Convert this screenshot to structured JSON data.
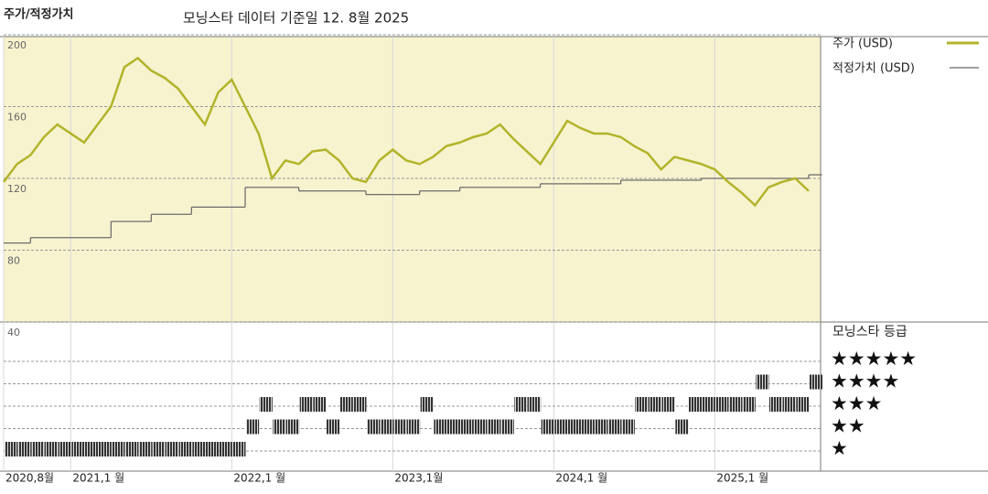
{
  "chart_data": {
    "type": "line",
    "title": "주가/적정가치",
    "subtitle": "모닝스타 데이터 기준일 12. 8월 2025",
    "x": [
      "2020-08",
      "2020-09",
      "2020-10",
      "2020-11",
      "2020-12",
      "2021-01",
      "2021-02",
      "2021-03",
      "2021-04",
      "2021-05",
      "2021-06",
      "2021-07",
      "2021-08",
      "2021-09",
      "2021-10",
      "2021-11",
      "2021-12",
      "2022-01",
      "2022-02",
      "2022-03",
      "2022-04",
      "2022-05",
      "2022-06",
      "2022-07",
      "2022-08",
      "2022-09",
      "2022-10",
      "2022-11",
      "2022-12",
      "2023-01",
      "2023-02",
      "2023-03",
      "2023-04",
      "2023-05",
      "2023-06",
      "2023-07",
      "2023-08",
      "2023-09",
      "2023-10",
      "2023-11",
      "2023-12",
      "2024-01",
      "2024-02",
      "2024-03",
      "2024-04",
      "2024-05",
      "2024-06",
      "2024-07",
      "2024-08",
      "2024-09",
      "2024-10",
      "2024-11",
      "2024-12",
      "2025-01",
      "2025-02",
      "2025-03",
      "2025-04",
      "2025-05",
      "2025-06",
      "2025-07",
      "2025-08"
    ],
    "xlim": [
      "2020-08",
      "2025-08"
    ],
    "xticks": [
      {
        "value": "2020-08",
        "label": "2020,8월"
      },
      {
        "value": "2021-01",
        "label": "2021,1 월"
      },
      {
        "value": "2022-01",
        "label": "2022,1 월"
      },
      {
        "value": "2023-01",
        "label": "2023,1월"
      },
      {
        "value": "2024-01",
        "label": "2024,1 월"
      },
      {
        "value": "2025-01",
        "label": "2025,1 월"
      }
    ],
    "ylim": [
      40,
      200
    ],
    "yticks": [
      40,
      80,
      120,
      160,
      200
    ],
    "grid": true,
    "series": [
      {
        "name": "주가 (USD)",
        "color": "#b3b32b",
        "values": [
          118,
          128,
          133,
          143,
          150,
          145,
          140,
          150,
          160,
          182,
          187,
          180,
          176,
          170,
          160,
          150,
          168,
          175,
          160,
          145,
          120,
          130,
          128,
          135,
          136,
          130,
          120,
          118,
          130,
          136,
          130,
          128,
          132,
          138,
          140,
          143,
          145,
          150,
          142,
          135,
          128,
          140,
          152,
          148,
          145,
          145,
          143,
          138,
          134,
          125,
          132,
          130,
          128,
          125,
          118,
          112,
          105,
          115,
          118,
          120,
          113
        ]
      },
      {
        "name": "적정가치 (USD)",
        "color": "#666666",
        "values": [
          84,
          84,
          87,
          87,
          87,
          87,
          87,
          87,
          96,
          96,
          96,
          100,
          100,
          100,
          104,
          104,
          104,
          104,
          115,
          115,
          115,
          115,
          113,
          113,
          113,
          113,
          113,
          111,
          111,
          111,
          111,
          113,
          113,
          113,
          115,
          115,
          115,
          115,
          115,
          115,
          117,
          117,
          117,
          117,
          117,
          117,
          119,
          119,
          119,
          119,
          119,
          119,
          120,
          120,
          120,
          120,
          120,
          120,
          120,
          120,
          122
        ]
      }
    ],
    "rating": {
      "title": "모닝스타 등급",
      "ticks": [
        {
          "value": 5,
          "label": "★★★★★"
        },
        {
          "value": 4,
          "label": "★★★★"
        },
        {
          "value": 3,
          "label": "★★★"
        },
        {
          "value": 2,
          "label": "★★"
        },
        {
          "value": 1,
          "label": "★"
        }
      ],
      "color": "#333333",
      "values": [
        1,
        1,
        1,
        1,
        1,
        1,
        1,
        1,
        1,
        1,
        1,
        1,
        1,
        1,
        1,
        1,
        1,
        1,
        2,
        3,
        2,
        2,
        3,
        3,
        2,
        3,
        3,
        2,
        2,
        2,
        2,
        3,
        2,
        2,
        2,
        2,
        2,
        2,
        3,
        3,
        2,
        2,
        2,
        2,
        2,
        2,
        2,
        3,
        3,
        3,
        2,
        3,
        3,
        3,
        3,
        3,
        4,
        3,
        3,
        3,
        4
      ]
    }
  }
}
